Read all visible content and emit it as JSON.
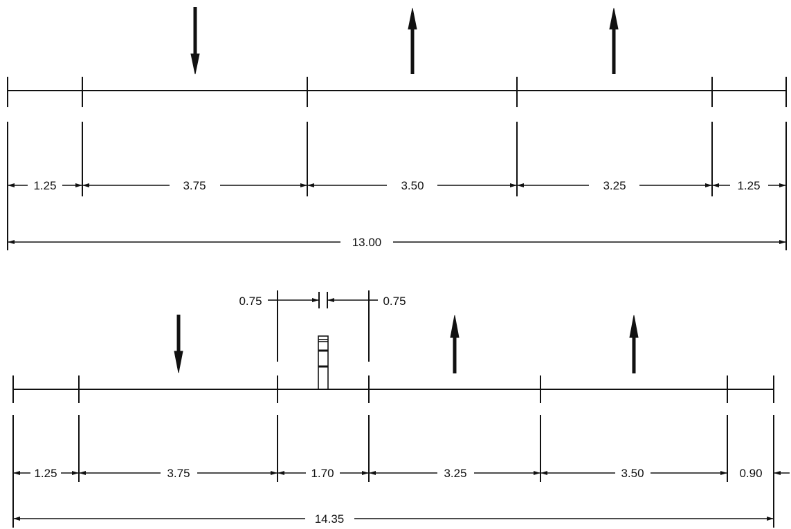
{
  "colors": {
    "line": "#111111",
    "background": "#ffffff"
  },
  "diagrams": [
    {
      "id": "top",
      "lane_widths": [
        "1.25",
        "3.75",
        "3.50",
        "3.25",
        "1.25"
      ],
      "total_width": "13.00",
      "lane_arrows": [
        {
          "lane": 1,
          "direction": "down"
        },
        {
          "lane": 2,
          "direction": "up"
        },
        {
          "lane": 3,
          "direction": "up"
        }
      ]
    },
    {
      "id": "bottom",
      "lane_widths": [
        "1.25",
        "3.75",
        "1.70",
        "3.25",
        "3.50",
        "0.90"
      ],
      "total_width": "14.35",
      "median_offsets": [
        "0.75",
        "0.75"
      ],
      "lane_arrows": [
        {
          "lane": 1,
          "direction": "down"
        },
        {
          "lane": 3,
          "direction": "up"
        },
        {
          "lane": 4,
          "direction": "up"
        }
      ]
    }
  ]
}
